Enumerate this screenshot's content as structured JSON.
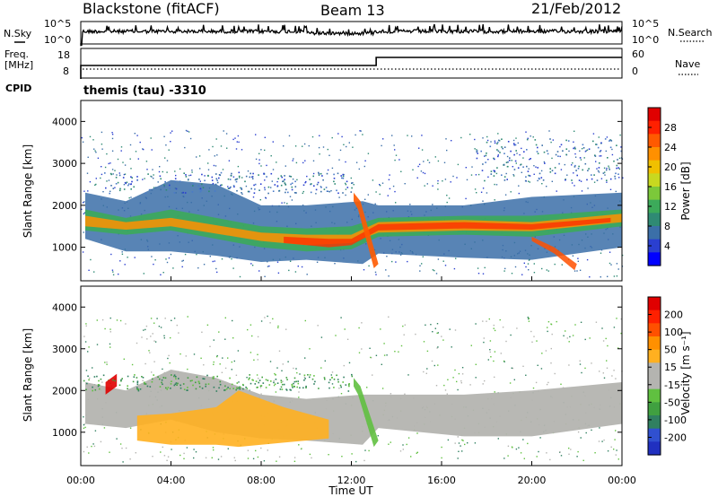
{
  "header": {
    "station": "Blackstone (fitACF)",
    "beam": "Beam 13",
    "date": "21/Feb/2012"
  },
  "side_labels": {
    "nsky": "N.Sky",
    "nsearch": "N.Search",
    "freq": "Freq.",
    "freq_unit": "[MHz]",
    "nave": "Nave",
    "cpid": "CPID",
    "cpid_value": "themis (tau) -3310"
  },
  "noise_panel": {
    "left_ticks": [
      "10^5",
      "10^0"
    ],
    "right_ticks": [
      "10^5",
      "10^0"
    ]
  },
  "freq_panel": {
    "left_ticks": [
      "18",
      "8"
    ],
    "right_ticks": [
      "60",
      "0"
    ],
    "freq_change_hour": 13.1
  },
  "chart_data": [
    {
      "type": "heatmap",
      "name": "power",
      "ylabel": "Slant Range [km]",
      "ylim": [
        200,
        4500
      ],
      "yticks": [
        "4000",
        "3000",
        "2000",
        "1000"
      ],
      "xlim": [
        0,
        24
      ],
      "colorbar": {
        "label": "Power [dB]",
        "ticks": [
          "28",
          "24",
          "20",
          "16",
          "12",
          "8",
          "4"
        ],
        "colors": [
          "#0000ff",
          "#2a3fd0",
          "#3b6fa8",
          "#2f8a74",
          "#3caa5a",
          "#7cc83a",
          "#c8d820",
          "#f0c000",
          "#ff9000",
          "#ff5a00",
          "#ff2000",
          "#e00000"
        ]
      }
    },
    {
      "type": "heatmap",
      "name": "velocity",
      "ylabel": "Slant Range [km]",
      "ylim": [
        200,
        4500
      ],
      "yticks": [
        "4000",
        "3000",
        "2000",
        "1000"
      ],
      "xlim": [
        0,
        24
      ],
      "colorbar": {
        "label": "Velocity [m s⁻¹]",
        "ticks": [
          "200",
          "100",
          "50",
          "15",
          "-15",
          "-50",
          "-100",
          "-200"
        ],
        "colors": [
          "#2030c0",
          "#3050d0",
          "#308060",
          "#40a040",
          "#60c040",
          "#b4b4b0",
          "#b4b4b0",
          "#ffb020",
          "#ff9000",
          "#ff5000",
          "#ff2000",
          "#e00000"
        ]
      }
    }
  ],
  "xaxis": {
    "ticks": [
      "00:00",
      "04:00",
      "08:00",
      "12:00",
      "16:00",
      "20:00",
      "00:00"
    ],
    "label": "Time UT"
  }
}
